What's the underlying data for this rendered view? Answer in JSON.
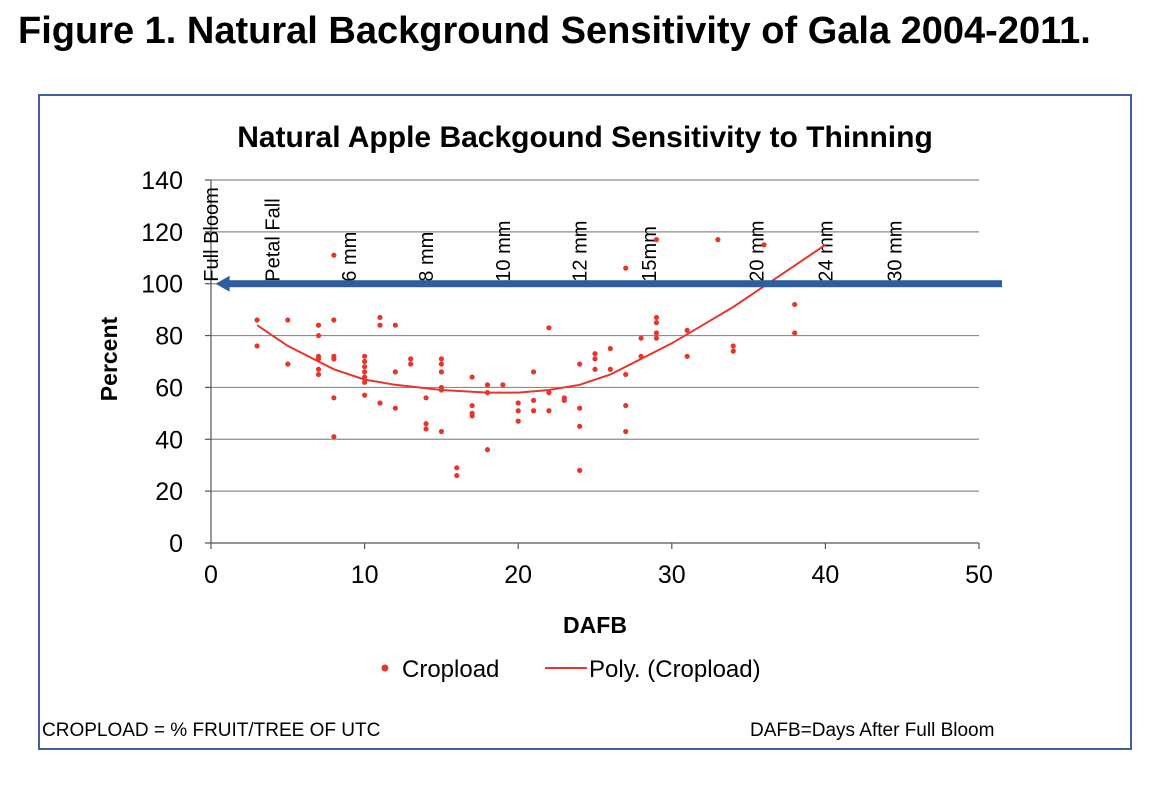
{
  "figure": {
    "title": "Figure 1.  Natural Background Sensitivity of Gala 2004-2011.",
    "footnote_left": "CROPLOAD = % FRUIT/TREE OF UTC",
    "footnote_right": "DAFB=Days After Full Bloom"
  },
  "colors": {
    "points": "#e8352b",
    "trend": "#e8352b",
    "arrow": "#2f5ea0",
    "grid": "#8c8c8c",
    "frame": "#3f5fa0"
  },
  "chart_data": {
    "type": "scatter",
    "title": "Natural Apple Backgound Sensitivity to Thinning",
    "xlabel": "DAFB",
    "ylabel": "Percent",
    "xlim": [
      0,
      50
    ],
    "ylim": [
      0,
      140
    ],
    "xticks": [
      0,
      10,
      20,
      30,
      40,
      50
    ],
    "yticks": [
      0,
      20,
      40,
      60,
      80,
      100,
      120,
      140
    ],
    "grid": "horizontal",
    "legend": {
      "position": "bottom",
      "entries": [
        "Cropload",
        "Poly. (Cropload)"
      ]
    },
    "series": [
      {
        "name": "Cropload",
        "points": [
          [
            3,
            86
          ],
          [
            3,
            76
          ],
          [
            5,
            86
          ],
          [
            5,
            69
          ],
          [
            7,
            84
          ],
          [
            7,
            80
          ],
          [
            7,
            72
          ],
          [
            7,
            71
          ],
          [
            7,
            67
          ],
          [
            7,
            65
          ],
          [
            8,
            111
          ],
          [
            8,
            86
          ],
          [
            8,
            72
          ],
          [
            8,
            71
          ],
          [
            8,
            56
          ],
          [
            8,
            41
          ],
          [
            10,
            72
          ],
          [
            10,
            70
          ],
          [
            10,
            68
          ],
          [
            10,
            66
          ],
          [
            10,
            64
          ],
          [
            10,
            62
          ],
          [
            10,
            57
          ],
          [
            11,
            87
          ],
          [
            11,
            84
          ],
          [
            11,
            54
          ],
          [
            12,
            84
          ],
          [
            12,
            66
          ],
          [
            12,
            52
          ],
          [
            13,
            71
          ],
          [
            13,
            69
          ],
          [
            14,
            56
          ],
          [
            14,
            46
          ],
          [
            14,
            44
          ],
          [
            15,
            71
          ],
          [
            15,
            69
          ],
          [
            15,
            66
          ],
          [
            15,
            60
          ],
          [
            15,
            59
          ],
          [
            15,
            43
          ],
          [
            16,
            29
          ],
          [
            16,
            26
          ],
          [
            17,
            64
          ],
          [
            17,
            53
          ],
          [
            17,
            50
          ],
          [
            17,
            49
          ],
          [
            18,
            61
          ],
          [
            18,
            58
          ],
          [
            18,
            36
          ],
          [
            19,
            61
          ],
          [
            20,
            54
          ],
          [
            20,
            51
          ],
          [
            20,
            47
          ],
          [
            21,
            66
          ],
          [
            21,
            55
          ],
          [
            21,
            51
          ],
          [
            22,
            83
          ],
          [
            22,
            58
          ],
          [
            22,
            51
          ],
          [
            23,
            56
          ],
          [
            23,
            55
          ],
          [
            24,
            69
          ],
          [
            24,
            52
          ],
          [
            24,
            45
          ],
          [
            24,
            28
          ],
          [
            25,
            73
          ],
          [
            25,
            71
          ],
          [
            25,
            67
          ],
          [
            26,
            75
          ],
          [
            26,
            67
          ],
          [
            27,
            106
          ],
          [
            27,
            65
          ],
          [
            27,
            53
          ],
          [
            27,
            43
          ],
          [
            28,
            79
          ],
          [
            28,
            72
          ],
          [
            29,
            117
          ],
          [
            29,
            87
          ],
          [
            29,
            85
          ],
          [
            29,
            81
          ],
          [
            29,
            79
          ],
          [
            31,
            82
          ],
          [
            31,
            72
          ],
          [
            33,
            117
          ],
          [
            34,
            76
          ],
          [
            34,
            74
          ],
          [
            36,
            115
          ],
          [
            38,
            92
          ],
          [
            38,
            81
          ],
          [
            40,
            100
          ]
        ]
      },
      {
        "name": "Poly. (Cropload)",
        "type": "polynomial-trendline",
        "points": [
          [
            3,
            84
          ],
          [
            5,
            76
          ],
          [
            8,
            67
          ],
          [
            10,
            63
          ],
          [
            12,
            61
          ],
          [
            15,
            59
          ],
          [
            18,
            58
          ],
          [
            20,
            58
          ],
          [
            22,
            59
          ],
          [
            24,
            61
          ],
          [
            26,
            65
          ],
          [
            28,
            71
          ],
          [
            30,
            77
          ],
          [
            32,
            84
          ],
          [
            34,
            91
          ],
          [
            36,
            99
          ],
          [
            38,
            107
          ],
          [
            40,
            115
          ]
        ]
      }
    ],
    "annotations": {
      "stage_labels": [
        {
          "label": "Full Bloom",
          "x": 0
        },
        {
          "label": "Petal Fall",
          "x": 4
        },
        {
          "label": "6 mm",
          "x": 9
        },
        {
          "label": "8 mm",
          "x": 14
        },
        {
          "label": "10 mm",
          "x": 19
        },
        {
          "label": "12 mm",
          "x": 24
        },
        {
          "label": "15mm",
          "x": 28.5
        },
        {
          "label": "20 mm",
          "x": 35.5
        },
        {
          "label": "24 mm",
          "x": 40
        },
        {
          "label": "30 mm",
          "x": 44.5
        }
      ],
      "arrow": {
        "y": 100,
        "from_x": 51.5,
        "to_x": 0.3,
        "direction": "left"
      }
    }
  }
}
